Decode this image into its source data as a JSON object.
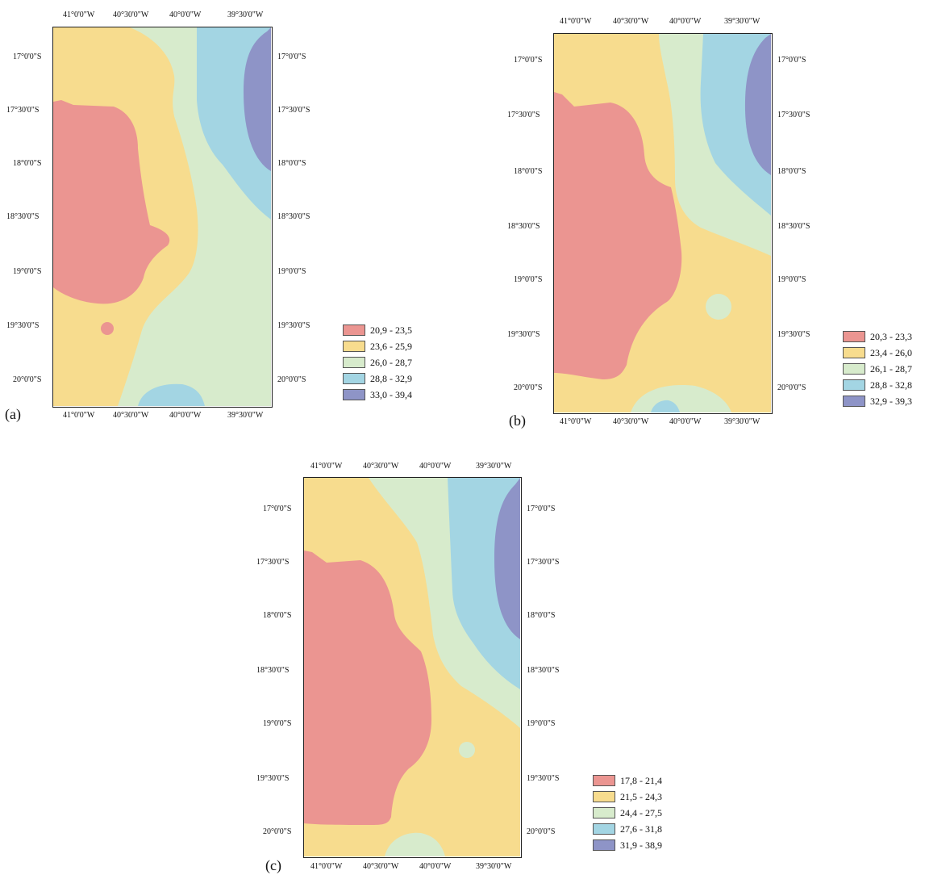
{
  "colors": {
    "class1": "#eb9591",
    "class2": "#f7dc8e",
    "class3": "#d7ebcc",
    "class4": "#a3d5e3",
    "class5": "#8e94c7"
  },
  "panels": [
    {
      "label": "(a)",
      "lon_labels": [
        "41°0'0\"W",
        "40°30'0\"W",
        "40°0'0\"W",
        "39°30'0\"W"
      ],
      "lat_labels": [
        "17°0'0\"S",
        "17°30'0\"S",
        "18°0'0\"S",
        "18°30'0\"S",
        "19°0'0\"S",
        "19°30'0\"S",
        "20°0'0\"S"
      ],
      "legend": [
        "20,9 - 23,5",
        "23,6 - 25,9",
        "26,0 - 28,7",
        "28,8 - 32,9",
        "33,0 - 39,4"
      ]
    },
    {
      "label": "(b)",
      "lon_labels": [
        "41°0'0\"W",
        "40°30'0\"W",
        "40°0'0\"W",
        "39°30'0\"W"
      ],
      "lat_labels": [
        "17°0'0\"S",
        "17°30'0\"S",
        "18°0'0\"S",
        "18°30'0\"S",
        "19°0'0\"S",
        "19°30'0\"S",
        "20°0'0\"S"
      ],
      "legend": [
        "20,3 - 23,3",
        "23,4 - 26,0",
        "26,1 - 28,7",
        "28,8 - 32,8",
        "32,9 - 39,3"
      ]
    },
    {
      "label": "(c)",
      "lon_labels": [
        "41°0'0\"W",
        "40°30'0\"W",
        "40°0'0\"W",
        "39°30'0\"W"
      ],
      "lat_labels": [
        "17°0'0\"S",
        "17°30'0\"S",
        "18°0'0\"S",
        "18°30'0\"S",
        "19°0'0\"S",
        "19°30'0\"S",
        "20°0'0\"S"
      ],
      "legend": [
        "17,8 - 21,4",
        "21,5 - 24,3",
        "24,4 - 27,5",
        "27,6 - 31,8",
        "31,9 - 38,9"
      ]
    }
  ]
}
